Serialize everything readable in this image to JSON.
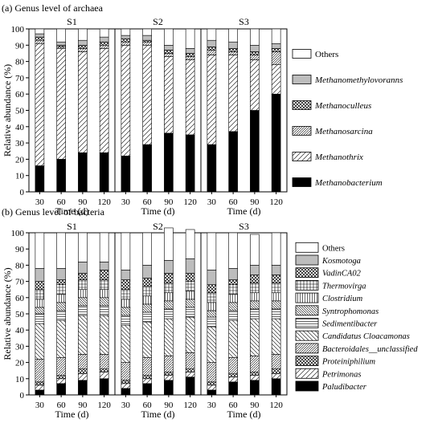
{
  "chart_data": [
    {
      "type": "bar",
      "stacked": true,
      "title": "(a) Genus level of archaea",
      "panels": [
        "S1",
        "S2",
        "S3"
      ],
      "categories": [
        "30",
        "60",
        "90",
        "120"
      ],
      "xlabel": "Time (d)",
      "ylabel": "Relative abundance (%)",
      "ylim": [
        0,
        100
      ],
      "yticks": [
        0,
        10,
        20,
        30,
        40,
        50,
        60,
        70,
        80,
        90,
        100
      ],
      "legend_position": "right",
      "series": [
        {
          "name": "Methanobacterium",
          "pattern": "solid-black",
          "values": [
            [
              16,
              20,
              24,
              24
            ],
            [
              22,
              29,
              36,
              35
            ],
            [
              29,
              37,
              50,
              60
            ]
          ]
        },
        {
          "name": "Methanothrix",
          "pattern": "sparse-diagonal",
          "values": [
            [
              75,
              68,
              62,
              64
            ],
            [
              68,
              61,
              47,
              46
            ],
            [
              55,
              47,
              31,
              18
            ]
          ]
        },
        {
          "name": "Methanosarcina",
          "pattern": "dense-diagonal",
          "values": [
            [
              2,
              1,
              2,
              2
            ],
            [
              2,
              2,
              2,
              2
            ],
            [
              3,
              2,
              3,
              8
            ]
          ]
        },
        {
          "name": "Methanoculleus",
          "pattern": "crosshatch",
          "values": [
            [
              2,
              1,
              2,
              2
            ],
            [
              2,
              1,
              2,
              2
            ],
            [
              2,
              2,
              2,
              2
            ]
          ]
        },
        {
          "name": "Methanomethylovoranns",
          "pattern": "gray",
          "values": [
            [
              2,
              2,
              3,
              3
            ],
            [
              2,
              3,
              3,
              3
            ],
            [
              4,
              4,
              4,
              3
            ]
          ]
        },
        {
          "name": "Others",
          "pattern": "white",
          "values": [
            [
              3,
              8,
              7,
              5
            ],
            [
              4,
              4,
              10,
              12
            ],
            [
              7,
              8,
              10,
              9
            ]
          ]
        }
      ]
    },
    {
      "type": "bar",
      "stacked": true,
      "title": "(b) Genus level of bacteria",
      "panels": [
        "S1",
        "S2",
        "S3"
      ],
      "categories": [
        "30",
        "60",
        "90",
        "120"
      ],
      "xlabel": "Time (d)",
      "ylabel": "Relative abundance (%)",
      "ylim": [
        0,
        100
      ],
      "yticks": [
        0,
        10,
        20,
        30,
        40,
        50,
        60,
        70,
        80,
        90,
        100
      ],
      "legend_position": "right",
      "series": [
        {
          "name": "Paludibacter",
          "pattern": "solid-black",
          "values": [
            [
              3,
              7,
              9,
              10
            ],
            [
              4,
              7,
              9,
              11
            ],
            [
              3,
              8,
              9,
              10
            ]
          ]
        },
        {
          "name": "Petrimonas",
          "pattern": "sparse-diagonal",
          "values": [
            [
              3,
              3,
              4,
              4
            ],
            [
              3,
              3,
              3,
              3
            ],
            [
              3,
              3,
              3,
              3
            ]
          ]
        },
        {
          "name": "Proteiniphilium",
          "pattern": "crosshatch",
          "values": [
            [
              2,
              2,
              3,
              2
            ],
            [
              2,
              2,
              2,
              2
            ],
            [
              2,
              2,
              2,
              3
            ]
          ]
        },
        {
          "name": "Bacteroidales__unclassified",
          "pattern": "dense-diagonal",
          "values": [
            [
              14,
              11,
              9,
              9
            ],
            [
              11,
              11,
              10,
              10
            ],
            [
              12,
              10,
              10,
              9
            ]
          ]
        },
        {
          "name": "Candidatus Cloacamonas",
          "pattern": "backslash",
          "values": [
            [
              22,
              23,
              24,
              24
            ],
            [
              23,
              22,
              23,
              22
            ],
            [
              22,
              23,
              23,
              22
            ]
          ]
        },
        {
          "name": "Sedimentibacter",
          "pattern": "horizontal",
          "values": [
            [
              6,
              6,
              6,
              6
            ],
            [
              6,
              6,
              6,
              6
            ],
            [
              6,
              6,
              6,
              6
            ]
          ]
        },
        {
          "name": "Syntrophomonas",
          "pattern": "dense-backslash",
          "values": [
            [
              4,
              5,
              5,
              5
            ],
            [
              5,
              5,
              5,
              5
            ],
            [
              4,
              5,
              5,
              5
            ]
          ]
        },
        {
          "name": "Clostridium",
          "pattern": "vertical",
          "values": [
            [
              5,
              5,
              5,
              5
            ],
            [
              5,
              5,
              5,
              5
            ],
            [
              5,
              5,
              5,
              5
            ]
          ]
        },
        {
          "name": "Thermovirga",
          "pattern": "grid",
          "values": [
            [
              6,
              6,
              6,
              6
            ],
            [
              6,
              6,
              6,
              6
            ],
            [
              6,
              6,
              6,
              6
            ]
          ]
        },
        {
          "name": "VadinCA02",
          "pattern": "crosshatch",
          "values": [
            [
              5,
              3,
              4,
              6
            ],
            [
              6,
              5,
              6,
              5
            ],
            [
              5,
              3,
              5,
              5
            ]
          ]
        },
        {
          "name": "Kosmotoga",
          "pattern": "gray",
          "values": [
            [
              8,
              7,
              7,
              5
            ],
            [
              6,
              8,
              8,
              9
            ],
            [
              9,
              7,
              6,
              6
            ]
          ]
        },
        {
          "name": "Others",
          "pattern": "white",
          "values": [
            [
              22,
              22,
              18,
              18
            ],
            [
              23,
              20,
              20,
              18
            ],
            [
              23,
              22,
              19,
              20
            ]
          ]
        }
      ]
    }
  ]
}
